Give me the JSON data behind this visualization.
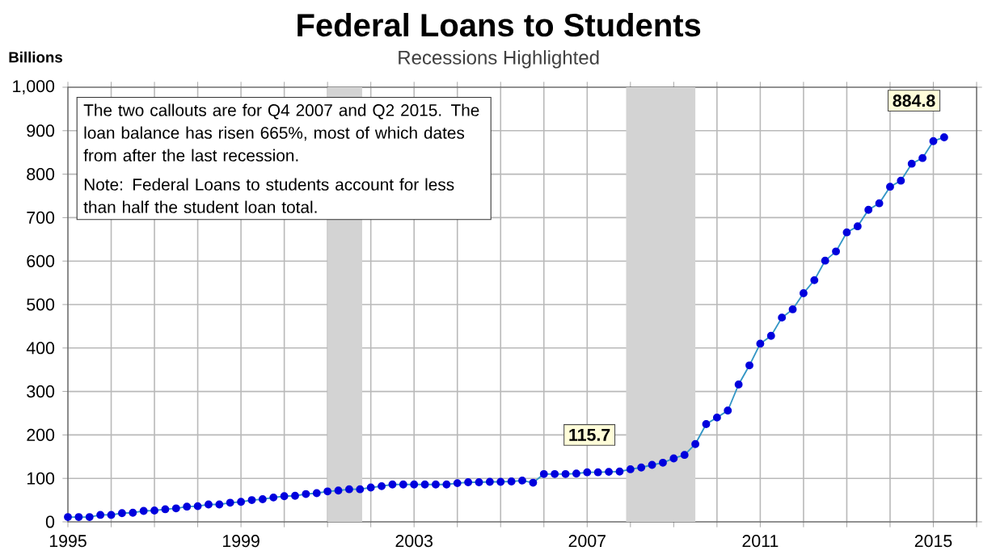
{
  "chart_data": {
    "type": "line",
    "title": "Federal Loans to Students",
    "subtitle": "Recessions Highlighted",
    "ylabel": "Billions",
    "x": [
      1995.0,
      1995.25,
      1995.5,
      1995.75,
      1996.0,
      1996.25,
      1996.5,
      1996.75,
      1997.0,
      1997.25,
      1997.5,
      1997.75,
      1998.0,
      1998.25,
      1998.5,
      1998.75,
      1999.0,
      1999.25,
      1999.5,
      1999.75,
      2000.0,
      2000.25,
      2000.5,
      2000.75,
      2001.0,
      2001.25,
      2001.5,
      2001.75,
      2002.0,
      2002.25,
      2002.5,
      2002.75,
      2003.0,
      2003.25,
      2003.5,
      2003.75,
      2004.0,
      2004.25,
      2004.5,
      2004.75,
      2005.0,
      2005.25,
      2005.5,
      2005.75,
      2006.0,
      2006.25,
      2006.5,
      2006.75,
      2007.0,
      2007.25,
      2007.5,
      2007.75,
      2008.0,
      2008.25,
      2008.5,
      2008.75,
      2009.0,
      2009.25,
      2009.5,
      2009.75,
      2010.0,
      2010.25,
      2010.5,
      2010.75,
      2011.0,
      2011.25,
      2011.5,
      2011.75,
      2012.0,
      2012.25,
      2012.5,
      2012.75,
      2013.0,
      2013.25,
      2013.5,
      2013.75,
      2014.0,
      2014.25,
      2014.5,
      2014.75,
      2015.0,
      2015.25
    ],
    "values": [
      11,
      11,
      11,
      16,
      16,
      20,
      21,
      25,
      26,
      29,
      31,
      35,
      36,
      40,
      40,
      44,
      46,
      50,
      52,
      56,
      59,
      60,
      64,
      66,
      70,
      72,
      75,
      75,
      79,
      82,
      86,
      86,
      86,
      86,
      86,
      86,
      89,
      91,
      91,
      92,
      92,
      93,
      95,
      90,
      110,
      110,
      110,
      111,
      114,
      114,
      115,
      115.7,
      121,
      125,
      131,
      136,
      146,
      154,
      179,
      225,
      240,
      256,
      316,
      360,
      410,
      428,
      470,
      489,
      526,
      556,
      601,
      622,
      666,
      680,
      718,
      733,
      771,
      785,
      824,
      837,
      876,
      884.8
    ],
    "color": "#0000dd",
    "marker": "circle",
    "line_style": "solid",
    "grid": true,
    "xlim": [
      1995,
      2016
    ],
    "xticks": [
      1995,
      {
        "value": 1996,
        "label": null
      },
      {
        "value": 1997,
        "label": null
      },
      {
        "value": 1998,
        "label": null
      },
      1999,
      {
        "value": 2000,
        "label": null
      },
      {
        "value": 2001,
        "label": null
      },
      {
        "value": 2002,
        "label": null
      },
      2003,
      {
        "value": 2004,
        "label": null
      },
      {
        "value": 2005,
        "label": null
      },
      {
        "value": 2006,
        "label": null
      },
      2007,
      {
        "value": 2008,
        "label": null
      },
      {
        "value": 2009,
        "label": null
      },
      {
        "value": 2010,
        "label": null
      },
      2011,
      {
        "value": 2012,
        "label": null
      },
      {
        "value": 2013,
        "label": null
      },
      {
        "value": 2014,
        "label": null
      },
      2015,
      {
        "value": 2016,
        "label": null
      }
    ],
    "ylim": [
      0,
      1000
    ],
    "yticks": [
      0,
      100,
      200,
      300,
      400,
      500,
      600,
      700,
      800,
      900,
      {
        "value": 1000,
        "label": "1,000"
      }
    ],
    "bands": [
      {
        "axis": "x",
        "from": 2001.0,
        "to": 2001.8,
        "color": "#d3d3d3"
      },
      {
        "axis": "x",
        "from": 2007.9,
        "to": 2009.5,
        "color": "#d3d3d3"
      }
    ],
    "annotations": [
      "The two callouts are for Q4 2007 and Q2 2015. The loan balance has risen 665%, most of which dates from after the last recession.",
      "Note: Federal Loans to students account for less than half the student loan total.",
      {
        "text": "115.7",
        "x": 2007.75,
        "y": 115.7
      },
      {
        "text": "884.8",
        "x": 2015.25,
        "y": 884.8
      }
    ]
  }
}
